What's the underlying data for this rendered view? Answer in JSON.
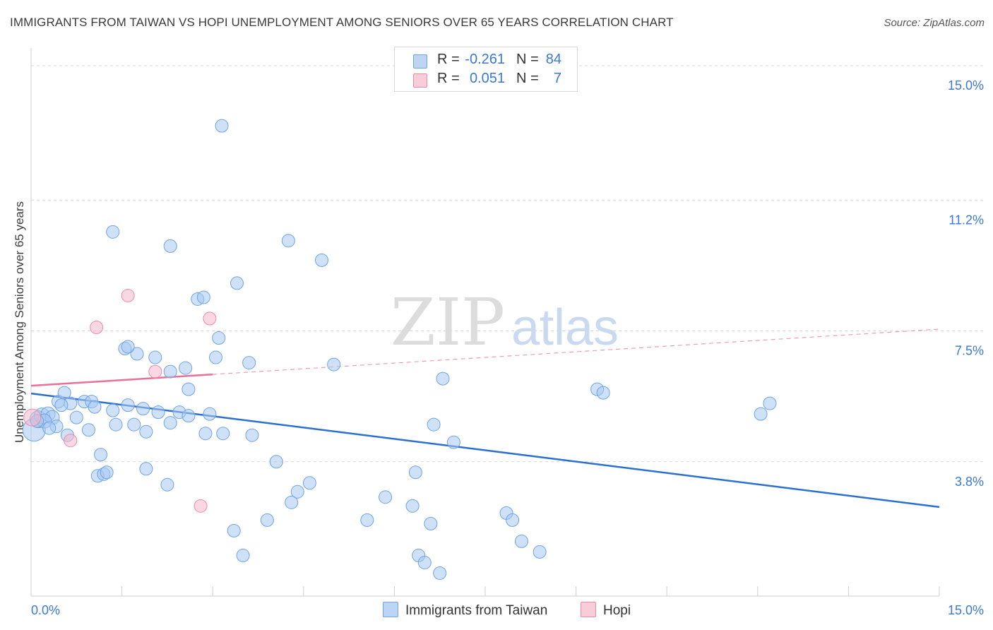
{
  "title": "IMMIGRANTS FROM TAIWAN VS HOPI UNEMPLOYMENT AMONG SENIORS OVER 65 YEARS CORRELATION CHART",
  "source": "Source: ZipAtlas.com",
  "watermark": {
    "zip": "ZIP",
    "atlas": "atlas"
  },
  "legend": {
    "rows": [
      {
        "r_label": "R =",
        "r_value": "-0.261",
        "n_label": "N =",
        "n_value": "84",
        "color": "#a8c8f0"
      },
      {
        "r_label": "R =",
        "r_value": "0.051",
        "n_label": "N =",
        "n_value": "7",
        "color": "#f5b8cc"
      }
    ]
  },
  "bottom_legend": [
    {
      "label": "Immigrants from Taiwan",
      "color": "#a8c8f0"
    },
    {
      "label": "Hopi",
      "color": "#f5b8cc"
    }
  ],
  "chart_data": {
    "type": "scatter",
    "title": "IMMIGRANTS FROM TAIWAN VS HOPI UNEMPLOYMENT AMONG SENIORS OVER 65 YEARS CORRELATION CHART",
    "xlabel": "",
    "ylabel": "Unemployment Among Seniors over 65 years",
    "xlim": [
      0,
      15
    ],
    "ylim": [
      0,
      15.3
    ],
    "x_tick_labels": [
      "0.0%",
      "15.0%"
    ],
    "y_tick_labels": [
      "3.8%",
      "7.5%",
      "11.2%",
      "15.0%"
    ],
    "y_ticks": [
      3.8,
      7.5,
      11.2,
      15.0
    ],
    "grid": true,
    "legend_position": "top-center",
    "series": [
      {
        "name": "Immigrants from Taiwan",
        "color": "#6fa3e6",
        "fill": "#a8c8f0",
        "trend": {
          "x": [
            0.0,
            15.0
          ],
          "y": [
            5.73,
            2.52
          ],
          "color": "#2a6fd1"
        },
        "points": [
          [
            0.05,
            4.7,
            16
          ],
          [
            0.12,
            5.0,
            12
          ],
          [
            0.18,
            5.1,
            11
          ],
          [
            0.28,
            5.15,
            10
          ],
          [
            0.35,
            5.05,
            10
          ],
          [
            0.45,
            5.5,
            9
          ],
          [
            0.55,
            5.75,
            9
          ],
          [
            0.65,
            5.45,
            9
          ],
          [
            0.22,
            4.95,
            10
          ],
          [
            0.42,
            4.8,
            9
          ],
          [
            0.6,
            4.55,
            9
          ],
          [
            0.75,
            5.05,
            9
          ],
          [
            0.88,
            5.5,
            9
          ],
          [
            0.95,
            4.7,
            9
          ],
          [
            1.0,
            5.5,
            9
          ],
          [
            1.05,
            5.35,
            9
          ],
          [
            1.35,
            5.25,
            9
          ],
          [
            1.6,
            5.4,
            9
          ],
          [
            1.85,
            5.3,
            9
          ],
          [
            2.1,
            5.2,
            9
          ],
          [
            2.45,
            5.2,
            9
          ],
          [
            2.6,
            5.1,
            9
          ],
          [
            2.95,
            5.15,
            9
          ],
          [
            1.4,
            4.85,
            9
          ],
          [
            1.7,
            4.85,
            9
          ],
          [
            1.9,
            4.65,
            9
          ],
          [
            2.3,
            4.9,
            9
          ],
          [
            2.88,
            4.6,
            9
          ],
          [
            3.17,
            4.6,
            9
          ],
          [
            3.65,
            4.55,
            9
          ],
          [
            1.15,
            4.0,
            9
          ],
          [
            1.1,
            3.4,
            9
          ],
          [
            1.2,
            3.45,
            9
          ],
          [
            1.25,
            3.5,
            9
          ],
          [
            1.9,
            3.6,
            9
          ],
          [
            2.25,
            3.15,
            9
          ],
          [
            1.35,
            10.3,
            9
          ],
          [
            2.3,
            9.9,
            9
          ],
          [
            3.15,
            13.3,
            9
          ],
          [
            3.4,
            8.85,
            9
          ],
          [
            2.75,
            8.4,
            9
          ],
          [
            2.85,
            8.45,
            9
          ],
          [
            1.55,
            7.0,
            9
          ],
          [
            1.75,
            6.85,
            9
          ],
          [
            1.6,
            7.05,
            9
          ],
          [
            2.05,
            6.75,
            9
          ],
          [
            2.3,
            6.35,
            9
          ],
          [
            2.55,
            6.45,
            9
          ],
          [
            3.05,
            6.75,
            9
          ],
          [
            3.1,
            7.3,
            9
          ],
          [
            3.6,
            6.6,
            9
          ],
          [
            2.6,
            5.85,
            9
          ],
          [
            4.25,
            10.05,
            9
          ],
          [
            4.8,
            9.5,
            9
          ],
          [
            5.0,
            6.55,
            9
          ],
          [
            4.05,
            3.8,
            9
          ],
          [
            4.6,
            3.2,
            9
          ],
          [
            4.4,
            2.95,
            9
          ],
          [
            4.3,
            2.65,
            9
          ],
          [
            3.9,
            2.15,
            9
          ],
          [
            3.35,
            1.85,
            9
          ],
          [
            3.5,
            1.15,
            9
          ],
          [
            5.55,
            2.15,
            9
          ],
          [
            5.85,
            2.8,
            9
          ],
          [
            6.35,
            3.5,
            9
          ],
          [
            6.3,
            2.55,
            9
          ],
          [
            6.65,
            4.85,
            9
          ],
          [
            6.98,
            4.35,
            9
          ],
          [
            6.8,
            6.15,
            9
          ],
          [
            6.6,
            2.05,
            9
          ],
          [
            6.4,
            1.15,
            9
          ],
          [
            6.5,
            0.95,
            9
          ],
          [
            6.75,
            0.65,
            9
          ],
          [
            7.85,
            2.35,
            9
          ],
          [
            7.95,
            2.15,
            9
          ],
          [
            8.1,
            1.55,
            9
          ],
          [
            8.4,
            1.25,
            9
          ],
          [
            9.35,
            5.85,
            9
          ],
          [
            9.45,
            5.75,
            9
          ],
          [
            12.05,
            5.15,
            9
          ],
          [
            12.2,
            5.45,
            9
          ],
          [
            0.1,
            4.95,
            9
          ],
          [
            0.3,
            4.75,
            9
          ],
          [
            0.5,
            5.4,
            9
          ]
        ]
      },
      {
        "name": "Hopi",
        "color": "#ec8aa8",
        "fill": "#f5b8cc",
        "trend": {
          "x": [
            0.0,
            15.0
          ],
          "y": [
            5.95,
            7.55
          ],
          "solid_until_x": 3.0,
          "color": "#e8709a"
        },
        "points": [
          [
            0.02,
            5.05,
            12
          ],
          [
            0.65,
            4.4,
            9
          ],
          [
            1.08,
            7.6,
            9
          ],
          [
            1.6,
            8.5,
            9
          ],
          [
            2.05,
            6.35,
            9
          ],
          [
            2.95,
            7.85,
            9
          ],
          [
            2.8,
            2.55,
            9
          ]
        ]
      }
    ]
  }
}
